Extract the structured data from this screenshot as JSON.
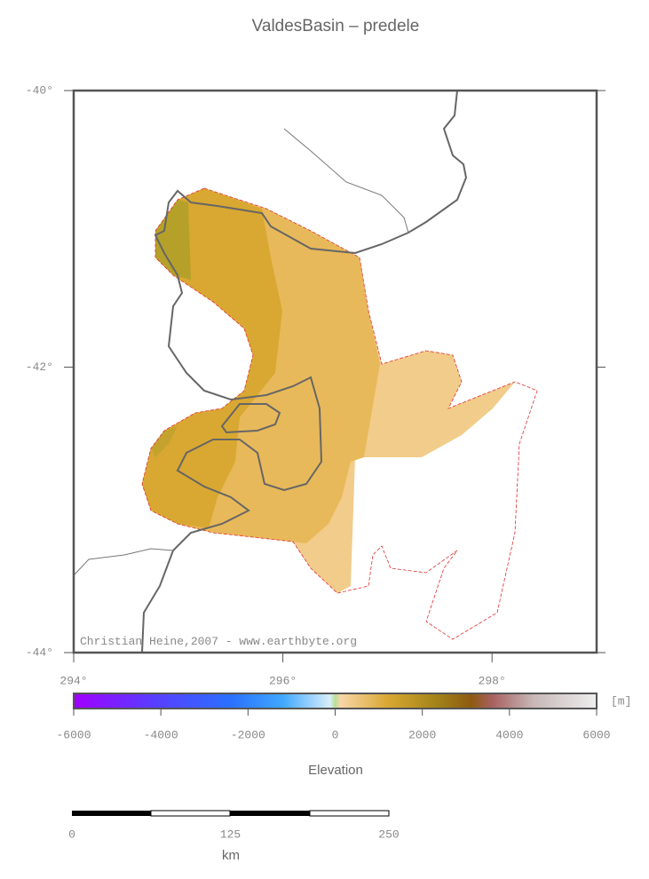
{
  "title": "ValdesBasin – predele",
  "map": {
    "lat_ticks": [
      {
        "value": -40,
        "label": "-40°"
      },
      {
        "value": -42,
        "label": "-42°"
      },
      {
        "value": -44,
        "label": "-44°"
      }
    ],
    "lon_ticks": [
      {
        "value": 294,
        "label": "294°"
      },
      {
        "value": 296,
        "label": "296°"
      },
      {
        "value": 298,
        "label": "298°"
      }
    ],
    "credit": "Christian Heine,2007 - www.earthbyte.org"
  },
  "colorbar": {
    "ticks": [
      -6000,
      -4000,
      -2000,
      0,
      2000,
      4000,
      6000
    ],
    "unit": "[m]",
    "label": "Elevation"
  },
  "scalebar": {
    "ticks": [
      0,
      125,
      250
    ],
    "unit": "km"
  }
}
